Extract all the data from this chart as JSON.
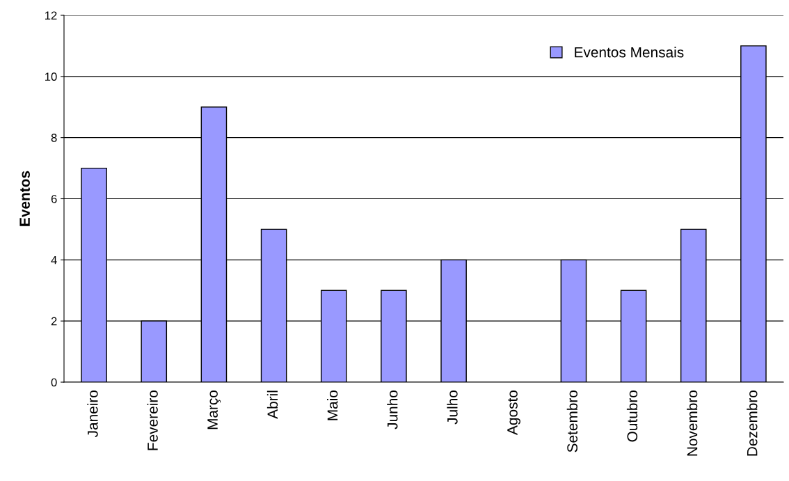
{
  "chart_data": {
    "type": "bar",
    "ylabel": "Eventos",
    "categories": [
      "Janeiro",
      "Fevereiro",
      "Março",
      "Abril",
      "Maio",
      "Junho",
      "Julho",
      "Agosto",
      "Setembro",
      "Outubro",
      "Novembro",
      "Dezembro"
    ],
    "series": [
      {
        "name": "Eventos Mensais",
        "color": "#9999ff",
        "values": [
          7,
          2,
          9,
          5,
          3,
          3,
          4,
          0,
          4,
          3,
          5,
          11
        ]
      }
    ],
    "ylim": [
      0,
      12
    ],
    "yticks": [
      0,
      2,
      4,
      6,
      8,
      10,
      12
    ],
    "grid": "y",
    "legend": "top right"
  }
}
